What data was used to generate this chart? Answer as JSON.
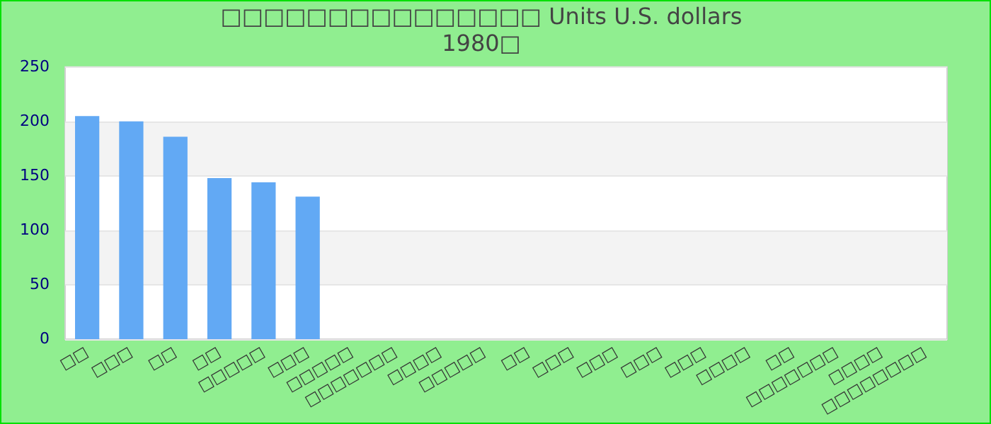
{
  "chart_data": {
    "type": "bar",
    "title": "□□□□□□□□□□□□□□□ Units U.S. dollars",
    "subtitle": "1980□",
    "categories": [
      "□□",
      "□□□",
      "□□",
      "□□",
      "□□□□□",
      "□□□",
      "□□□□□",
      "□□□□□□□",
      "□□□□",
      "□□□□□",
      "□□",
      "□□□",
      "□□□",
      "□□□",
      "□□□",
      "□□□□",
      "□□",
      "□□□□□□□",
      "□□□□",
      "□□□□□□□□"
    ],
    "values": [
      205,
      200,
      186,
      148,
      144,
      131,
      null,
      null,
      null,
      null,
      null,
      null,
      null,
      null,
      null,
      null,
      null,
      null,
      null,
      null
    ],
    "color": "#62a9f4",
    "ylim": [
      0,
      250
    ],
    "yticks": [
      0,
      50,
      100,
      150,
      200,
      250
    ],
    "grid": "y",
    "legend": false
  }
}
